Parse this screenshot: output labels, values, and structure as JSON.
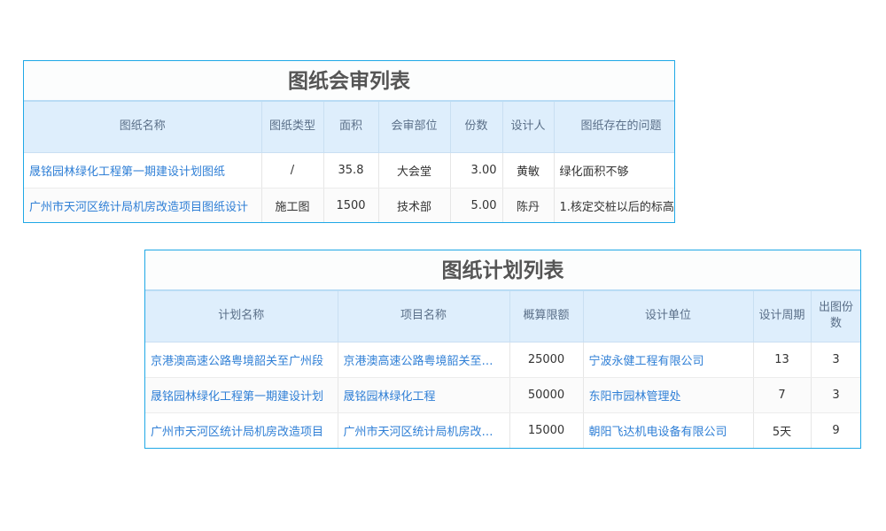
{
  "review": {
    "title": "图纸会审列表",
    "headers": [
      "图纸名称",
      "图纸类型",
      "面积",
      "会审部位",
      "份数",
      "设计人",
      "图纸存在的问题"
    ],
    "rows": [
      [
        "晟铭园林绿化工程第一期建设计划图纸",
        "/",
        "35.8",
        "大会堂",
        "3.00",
        "黄敏",
        "绿化面积不够"
      ],
      [
        "广州市天河区统计局机房改造项目图纸设计",
        "施工图",
        "1500",
        "技术部",
        "5.00",
        "陈丹",
        "1.核定交桩以后的标高"
      ]
    ]
  },
  "plan": {
    "title": "图纸计划列表",
    "headers": [
      "计划名称",
      "项目名称",
      "概算限额",
      "设计单位",
      "设计周期",
      "出图份数"
    ],
    "rows": [
      [
        "京港澳高速公路粤境韶关至广州段",
        "京港澳高速公路粤境韶关至广州段",
        "25000",
        "宁波永健工程有限公司",
        "13",
        "3"
      ],
      [
        "晟铭园林绿化工程第一期建设计划",
        "晟铭园林绿化工程",
        "50000",
        "东阳市园林管理处",
        "7",
        "3"
      ],
      [
        "广州市天河区统计局机房改造项目",
        "广州市天河区统计局机房改造项目",
        "15000",
        "朝阳飞达机电设备有限公司",
        "5天",
        "9"
      ]
    ]
  },
  "colors": {
    "border": "#1fa8e6",
    "header_bg": "#deeefc",
    "link": "#2f7fd6"
  }
}
